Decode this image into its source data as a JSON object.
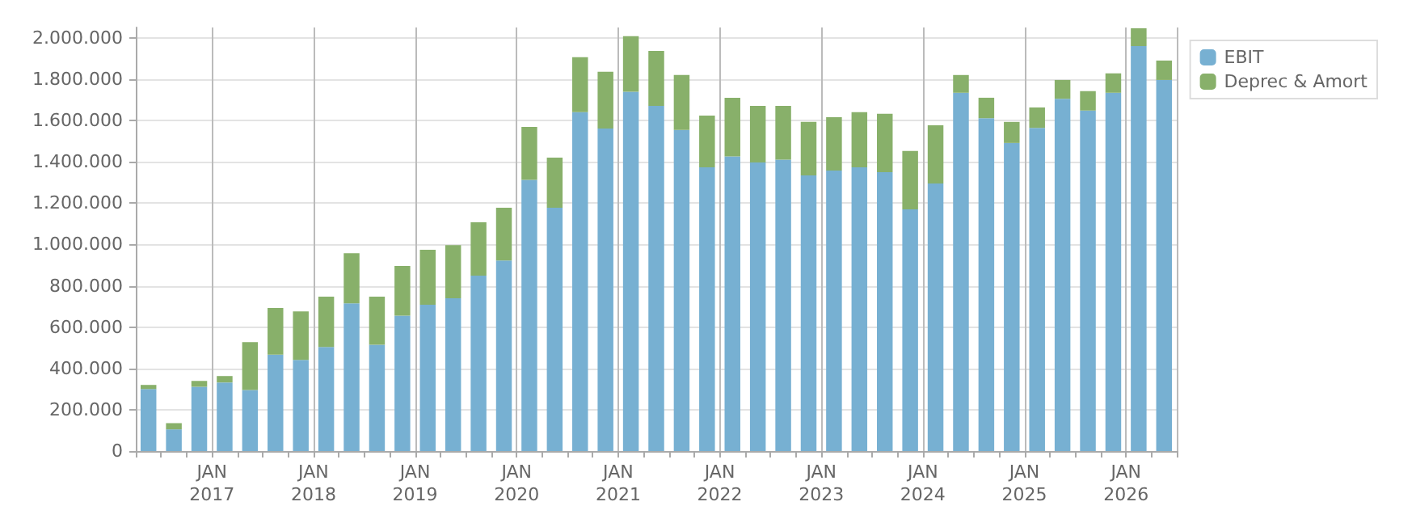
{
  "chart_data": {
    "type": "bar",
    "stacked": true,
    "categories": [
      null,
      null,
      null,
      "JAN\n2017",
      null,
      null,
      null,
      "JAN\n2018",
      null,
      null,
      null,
      "JAN\n2019",
      null,
      null,
      null,
      "JAN\n2020",
      null,
      null,
      null,
      "JAN\n2021",
      null,
      null,
      null,
      "JAN\n2022",
      null,
      null,
      null,
      "JAN\n2023",
      null,
      null,
      null,
      "JAN\n2024",
      null,
      null,
      null,
      "JAN\n2025",
      null,
      null,
      null,
      "JAN\n2026",
      null
    ],
    "series": [
      {
        "name": "EBIT",
        "color": "#77b0d2",
        "values": [
          300000,
          105000,
          311000,
          332000,
          295000,
          467000,
          441000,
          504000,
          715000,
          514000,
          655000,
          708000,
          739000,
          849000,
          922000,
          1313000,
          1178000,
          1640000,
          1561000,
          1739000,
          1671000,
          1554000,
          1373000,
          1426000,
          1397000,
          1410000,
          1334000,
          1358000,
          1373000,
          1350000,
          1170000,
          1295000,
          1734000,
          1611000,
          1491000,
          1564000,
          1705000,
          1648000,
          1734000,
          1960000,
          1796000
        ]
      },
      {
        "name": "Deprec & Amort",
        "color": "#88b06a",
        "values": [
          20000,
          30000,
          28000,
          31000,
          232000,
          225000,
          235000,
          243000,
          243000,
          233000,
          241000,
          266000,
          258000,
          258000,
          256000,
          256000,
          242000,
          266000,
          275000,
          269000,
          266000,
          266000,
          251000,
          284000,
          274000,
          261000,
          259000,
          258000,
          267000,
          282000,
          282000,
          282000,
          86000,
          99000,
          102000,
          99000,
          91000,
          94000,
          94000,
          86000,
          94000
        ]
      }
    ],
    "ylim": [
      0,
      2050000
    ],
    "yticks": [
      {
        "value": 0,
        "label": "0"
      },
      {
        "value": 200000,
        "label": "200.000"
      },
      {
        "value": 400000,
        "label": "400.000"
      },
      {
        "value": 600000,
        "label": "600.000"
      },
      {
        "value": 800000,
        "label": "800.000"
      },
      {
        "value": 1000000,
        "label": "1.000.000"
      },
      {
        "value": 1200000,
        "label": "1.200.000"
      },
      {
        "value": 1400000,
        "label": "1.400.000"
      },
      {
        "value": 1600000,
        "label": "1.600.000"
      },
      {
        "value": 1800000,
        "label": "1.800.000"
      },
      {
        "value": 2000000,
        "label": "2.000.000"
      }
    ],
    "grid": true,
    "legend": "top right"
  }
}
